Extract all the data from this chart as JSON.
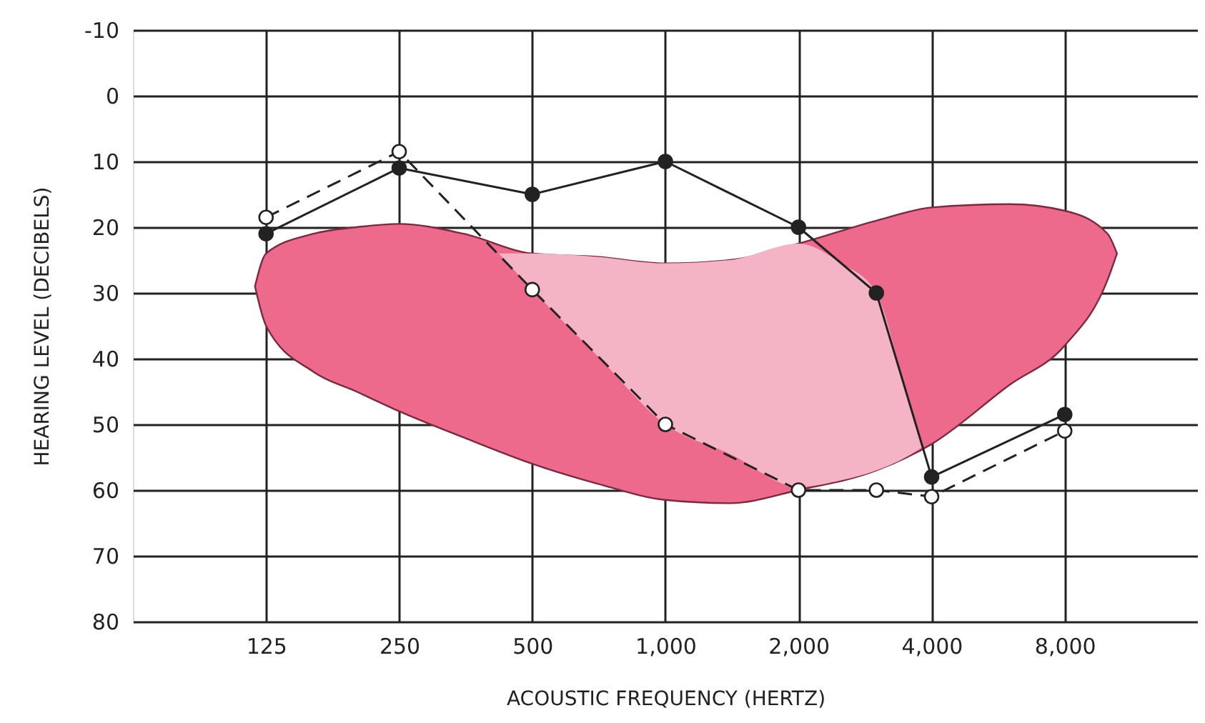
{
  "chart_data": {
    "type": "line",
    "xlabel": "ACOUSTIC FREQUENCY (HERTZ)",
    "ylabel": "HEARING LEVEL (DECIBELS)",
    "log": "x",
    "xlim": [
      62.5,
      16000
    ],
    "ylim": [
      80,
      -10
    ],
    "xticks": [
      125,
      250,
      500,
      {
        "value": 1000,
        "label": "1,000"
      },
      {
        "value": 2000,
        "label": "2,000"
      },
      {
        "value": 4000,
        "label": "4,000"
      },
      {
        "value": 8000,
        "label": "8,000"
      }
    ],
    "yticks": [
      -10,
      0,
      10,
      20,
      30,
      40,
      50,
      60,
      70,
      80
    ],
    "grid": true,
    "series": [
      {
        "color": "#222222",
        "marker": "circle",
        "line_style": "solid",
        "x": [
          125,
          250,
          500,
          1000,
          2000,
          3000,
          4000,
          8000
        ],
        "values": [
          21,
          11,
          15,
          10,
          20,
          30,
          58,
          48.5
        ]
      },
      {
        "color": "#222222",
        "marker": "circle",
        "line_style": "dashed",
        "x": [
          125,
          250,
          500,
          1000,
          2000,
          3000,
          4000,
          8000
        ],
        "values": [
          18.5,
          8.5,
          29.5,
          50,
          60,
          60,
          61,
          51
        ]
      }
    ]
  }
}
